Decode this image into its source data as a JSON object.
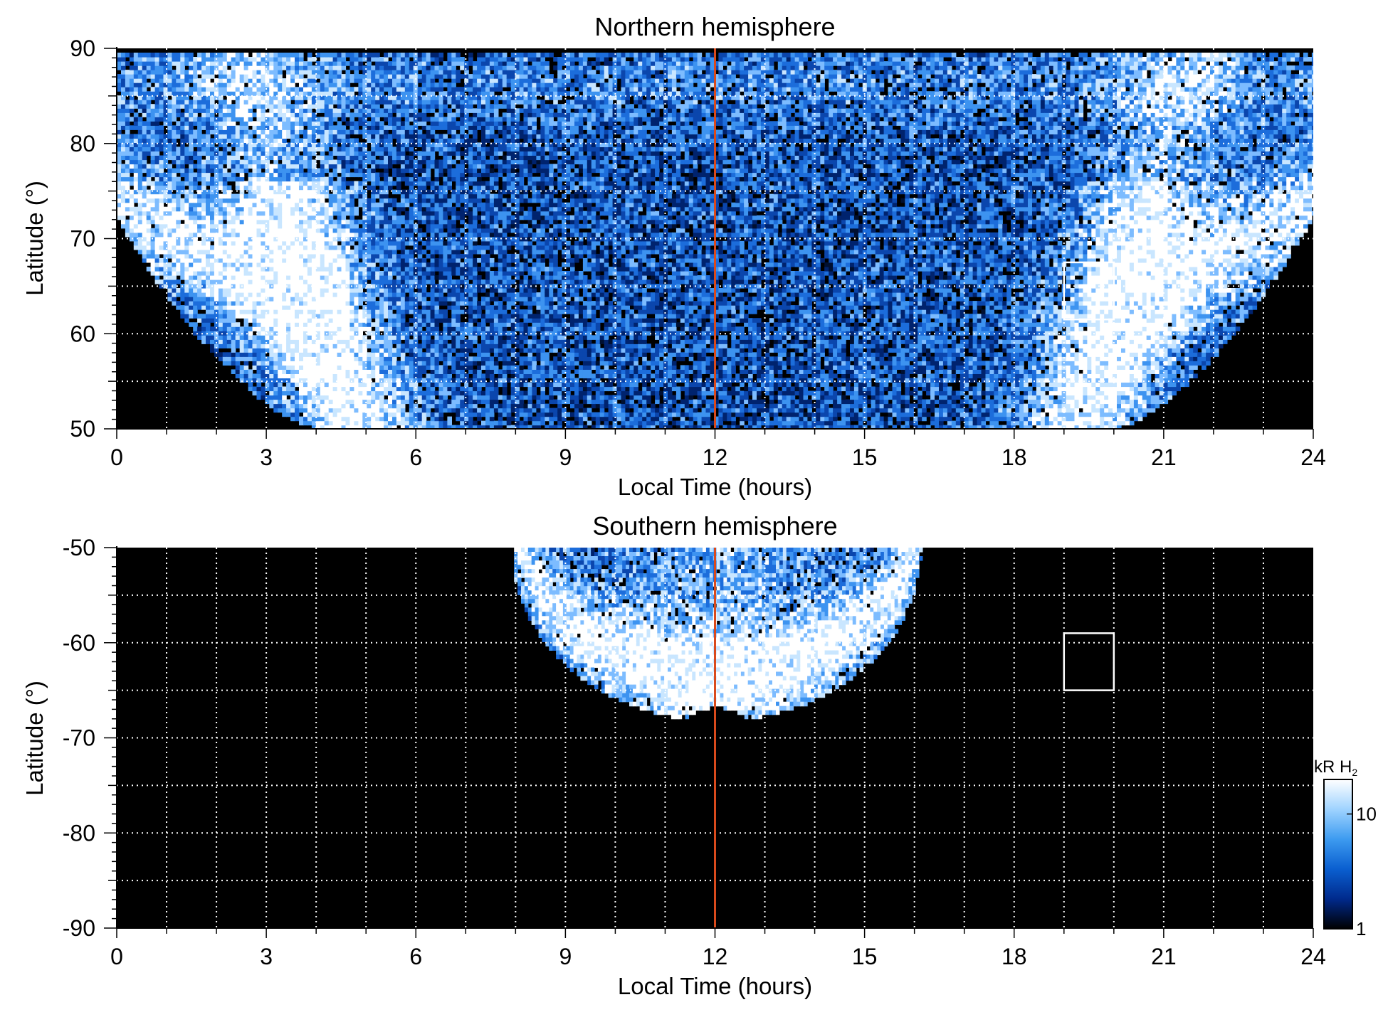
{
  "chart_data": [
    {
      "type": "heatmap",
      "title": "Northern hemisphere",
      "xlabel": "Local Time (hours)",
      "ylabel": "Latitude (°)",
      "xlim": [
        0,
        24
      ],
      "ylim": [
        50,
        90
      ],
      "x_ticks": [
        "0",
        "3",
        "6",
        "9",
        "12",
        "15",
        "18",
        "21",
        "24"
      ],
      "y_ticks": [
        "50",
        "60",
        "70",
        "80",
        "90"
      ],
      "grid": true,
      "reference_line_local_time": 12,
      "box": {
        "lt": [
          19,
          20
        ],
        "lat": [
          61.5,
          67.5
        ]
      }
    },
    {
      "type": "heatmap",
      "title": "Southern hemisphere",
      "xlabel": "Local Time (hours)",
      "ylabel": "Latitude (°)",
      "xlim": [
        0,
        24
      ],
      "ylim": [
        -90,
        -50
      ],
      "x_ticks": [
        "0",
        "3",
        "6",
        "9",
        "12",
        "15",
        "18",
        "21",
        "24"
      ],
      "y_ticks": [
        "-50",
        "-60",
        "-70",
        "-80",
        "-90"
      ],
      "grid": true,
      "reference_line_local_time": 12,
      "box": {
        "lt": [
          19,
          20
        ],
        "lat": [
          -65,
          -59
        ]
      }
    }
  ],
  "colorbar": {
    "unit_main": "kR H",
    "unit_sub": "2",
    "tick_labels": [
      "1",
      "10"
    ],
    "range": [
      1,
      20
    ],
    "scale": "log",
    "colors": [
      "#000000",
      "#002a8c",
      "#0a5fd0",
      "#3d9bf0",
      "#9fd3ff",
      "#ffffff"
    ]
  },
  "colors": {
    "background": "#000000",
    "reference_line": "#d94a1c",
    "grid": "#ffffff",
    "box": "#ffffff"
  }
}
